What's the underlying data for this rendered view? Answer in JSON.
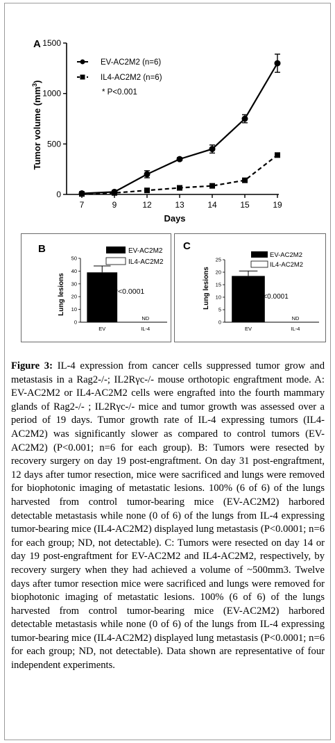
{
  "figure": {
    "panel_a_letter": "A",
    "panel_b_letter": "B",
    "panel_c_letter": "C"
  },
  "chart_data": [
    {
      "type": "line",
      "panel": "A",
      "xlabel": "Days",
      "ylabel": "Tumor volume (mm",
      "ylabel_sup": "3",
      "ylabel_close": ")",
      "categories": [
        "7",
        "9",
        "12",
        "13",
        "14",
        "15",
        "19"
      ],
      "ylim": [
        0,
        1500
      ],
      "yticks": [
        "0",
        "500",
        "1000",
        "1500"
      ],
      "yticks_values": [
        0,
        500,
        1000,
        1500
      ],
      "annotation": "* P<0.001",
      "series": [
        {
          "name": "EV-AC2M2 (n=6)",
          "values": [
            10,
            25,
            200,
            350,
            450,
            750,
            1300
          ],
          "errors": [
            5,
            10,
            35,
            15,
            40,
            40,
            90
          ],
          "marker": "circle",
          "line": "solid"
        },
        {
          "name": "IL4-AC2M2 (n=6)",
          "values": [
            5,
            15,
            40,
            65,
            85,
            140,
            390
          ],
          "errors": [
            3,
            5,
            10,
            10,
            10,
            12,
            15
          ],
          "marker": "square",
          "line": "dashed"
        }
      ]
    },
    {
      "type": "bar",
      "panel": "B",
      "ylabel": "Lung lesions",
      "categories": [
        "EV",
        "IL-4"
      ],
      "values": [
        39,
        0
      ],
      "errors": [
        5,
        0
      ],
      "ylim": [
        0,
        50
      ],
      "yticks": [
        "0",
        "10",
        "20",
        "30",
        "40",
        "50"
      ],
      "yticks_values": [
        0,
        10,
        20,
        30,
        40,
        50
      ],
      "bar_labels": [
        "",
        "ND"
      ],
      "legend": [
        "EV-AC2M2",
        "IL4-AC2M2"
      ],
      "annotation": "* P<0.0001"
    },
    {
      "type": "bar",
      "panel": "C",
      "ylabel": "Lung lesions",
      "categories": [
        "EV",
        "IL-4"
      ],
      "values": [
        18.5,
        0
      ],
      "errors": [
        2,
        0
      ],
      "ylim": [
        0,
        25
      ],
      "yticks": [
        "0",
        "5",
        "10",
        "15",
        "20",
        "25"
      ],
      "yticks_values": [
        0,
        5,
        10,
        15,
        20,
        25
      ],
      "bar_labels": [
        "",
        "ND"
      ],
      "legend": [
        "EV-AC2M2",
        "IL4-AC2M2"
      ],
      "annotation": "* P<0.0001"
    }
  ],
  "caption": {
    "label": "Figure 3:",
    "text": "IL-4 expression from cancer cells suppressed tumor grow and metastasis in a Rag2-/-; IL2Rγc-/- mouse orthotopic engraftment mode. A: EV-AC2M2 or IL4-AC2M2 cells were engrafted into the fourth mammary glands of Rag2-/- ; IL2Rγc-/- mice and tumor growth was assessed over a period of 19 days. Tumor growth rate of IL-4 expressing tumors (IL4-AC2M2) was significantly slower as compared to control tumors (EV-AC2M2) (P<0.001; n=6 for each group). B: Tumors were resected by recovery surgery on day 19 post-engraftment. On day 31 post-engraftment, 12 days after tumor resection, mice were sacrificed and lungs were removed for biophotonic imaging of metastatic lesions. 100% (6 of 6) of the lungs harvested from control tumor-bearing mice (EV-AC2M2) harbored detectable metastasis while none (0 of 6) of the lungs from IL-4 expressing tumor-bearing mice (IL4-AC2M2) displayed lung metastasis (P<0.0001; n=6 for each group; ND, not detectable). C: Tumors were resected on day 14 or day 19 post-engraftment for EV-AC2M2 and IL4-AC2M2, respectively, by recovery surgery when they had achieved a volume of ~500mm3. Twelve days after tumor resection mice were sacrificed and lungs were removed for biophotonic imaging of metastatic lesions. 100% (6 of 6) of the lungs harvested from control tumor-bearing mice (EV-AC2M2) harbored detectable metastasis while none (0 of 6) of the lungs from IL-4 expressing tumor-bearing mice (IL4-AC2M2) displayed lung metastasis (P<0.0001; n=6 for each group; ND, not detectable). Data shown are representative of four independent experiments."
  }
}
